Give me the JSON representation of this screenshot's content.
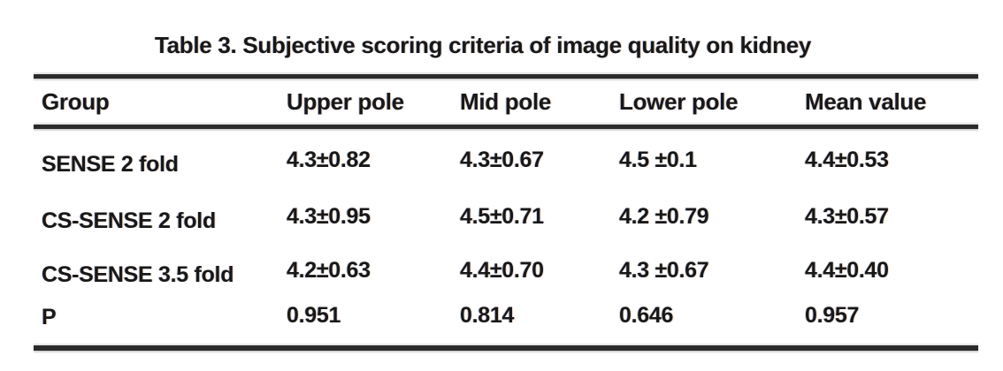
{
  "caption": "Table 3. Subjective scoring criteria of image quality on kidney",
  "table": {
    "columns": [
      "Group",
      "Upper pole",
      "Mid pole",
      "Lower pole",
      "Mean value"
    ],
    "rows": [
      {
        "group": "SENSE 2 fold",
        "values": [
          "4.3±0.82",
          "4.3±0.67",
          "4.5 ±0.1",
          "4.4±0.53"
        ]
      },
      {
        "group": "CS-SENSE 2 fold",
        "values": [
          "4.3±0.95",
          "4.5±0.71",
          "4.2 ±0.79",
          "4.3±0.57"
        ]
      },
      {
        "group": "CS-SENSE 3.5 fold",
        "values": [
          "4.2±0.63",
          "4.4±0.70",
          "4.3 ±0.67",
          "4.4±0.40"
        ]
      },
      {
        "group": "P",
        "values": [
          "0.951",
          "0.814",
          "0.646",
          "0.957"
        ]
      }
    ]
  },
  "colors": {
    "background": "#ffffff",
    "text": "#181818",
    "rule": "#2b2b2b"
  }
}
